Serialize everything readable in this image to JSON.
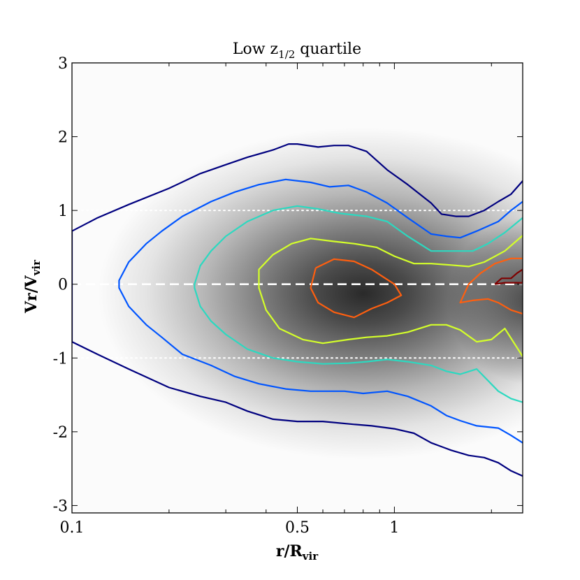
{
  "chart_data": {
    "type": "contour",
    "title": "Low z",
    "title_sub": "1/2",
    "title_suffix": " quartile",
    "xlabel": "r/R",
    "xlabel_sub": "vir",
    "ylabel": "Vr/V",
    "ylabel_sub": "vir",
    "x_scale": "log",
    "xlim": [
      0.1,
      2.5
    ],
    "ylim": [
      -3.1,
      3
    ],
    "x_ticks": [
      {
        "value": 0.1,
        "label": "0.1"
      },
      {
        "value": 0.5,
        "label": "0.5"
      },
      {
        "value": 1,
        "label": "1"
      }
    ],
    "x_minor_ticks": [
      0.2,
      0.3,
      0.4,
      0.6,
      0.7,
      0.8,
      0.9,
      2
    ],
    "y_ticks": [
      {
        "value": 3,
        "label": "3"
      },
      {
        "value": 2,
        "label": "2"
      },
      {
        "value": 1,
        "label": "1"
      },
      {
        "value": 0,
        "label": "0"
      },
      {
        "value": -1,
        "label": "-1"
      },
      {
        "value": -2,
        "label": "-2"
      },
      {
        "value": -3,
        "label": "-3"
      }
    ],
    "reference_lines": [
      {
        "y": 0,
        "style": "dashed",
        "color": "#ffffff"
      },
      {
        "y": 1,
        "style": "dotted",
        "color": "#ffffff"
      },
      {
        "y": -1,
        "style": "dotted",
        "color": "#ffffff"
      }
    ],
    "density_background": {
      "colormap": "greys",
      "peak": {
        "x": 0.8,
        "y": -0.1
      }
    },
    "contours": [
      {
        "level": 1,
        "color": "#00007f",
        "upper": [
          [
            0.1,
            0.72
          ],
          [
            0.12,
            0.9
          ],
          [
            0.15,
            1.08
          ],
          [
            0.2,
            1.3
          ],
          [
            0.25,
            1.5
          ],
          [
            0.3,
            1.62
          ],
          [
            0.35,
            1.72
          ],
          [
            0.42,
            1.82
          ],
          [
            0.47,
            1.9
          ],
          [
            0.5,
            1.9
          ],
          [
            0.58,
            1.86
          ],
          [
            0.65,
            1.88
          ],
          [
            0.72,
            1.88
          ],
          [
            0.82,
            1.8
          ],
          [
            0.95,
            1.55
          ],
          [
            1.1,
            1.35
          ],
          [
            1.3,
            1.1
          ],
          [
            1.4,
            0.95
          ],
          [
            1.55,
            0.92
          ],
          [
            1.7,
            0.92
          ],
          [
            1.9,
            1.0
          ],
          [
            2.1,
            1.12
          ],
          [
            2.3,
            1.22
          ],
          [
            2.5,
            1.4
          ]
        ],
        "lower": [
          [
            0.1,
            -0.78
          ],
          [
            0.12,
            -0.95
          ],
          [
            0.15,
            -1.15
          ],
          [
            0.2,
            -1.4
          ],
          [
            0.25,
            -1.52
          ],
          [
            0.3,
            -1.6
          ],
          [
            0.35,
            -1.72
          ],
          [
            0.42,
            -1.83
          ],
          [
            0.5,
            -1.86
          ],
          [
            0.6,
            -1.86
          ],
          [
            0.75,
            -1.9
          ],
          [
            0.85,
            -1.92
          ],
          [
            1.0,
            -1.96
          ],
          [
            1.15,
            -2.02
          ],
          [
            1.3,
            -2.15
          ],
          [
            1.5,
            -2.25
          ],
          [
            1.7,
            -2.32
          ],
          [
            1.9,
            -2.35
          ],
          [
            2.1,
            -2.42
          ],
          [
            2.3,
            -2.53
          ],
          [
            2.5,
            -2.6
          ]
        ]
      },
      {
        "level": 2,
        "color": "#0055ff",
        "upper": [
          [
            0.14,
            0.05
          ],
          [
            0.15,
            0.3
          ],
          [
            0.17,
            0.55
          ],
          [
            0.19,
            0.72
          ],
          [
            0.22,
            0.92
          ],
          [
            0.27,
            1.12
          ],
          [
            0.32,
            1.25
          ],
          [
            0.38,
            1.35
          ],
          [
            0.46,
            1.42
          ],
          [
            0.55,
            1.38
          ],
          [
            0.63,
            1.32
          ],
          [
            0.72,
            1.34
          ],
          [
            0.82,
            1.25
          ],
          [
            0.95,
            1.1
          ],
          [
            1.1,
            0.9
          ],
          [
            1.3,
            0.68
          ],
          [
            1.45,
            0.65
          ],
          [
            1.6,
            0.63
          ],
          [
            1.8,
            0.72
          ],
          [
            2.1,
            0.85
          ],
          [
            2.3,
            1.0
          ],
          [
            2.5,
            1.12
          ]
        ],
        "lower": [
          [
            0.14,
            -0.05
          ],
          [
            0.15,
            -0.3
          ],
          [
            0.17,
            -0.55
          ],
          [
            0.19,
            -0.72
          ],
          [
            0.22,
            -0.95
          ],
          [
            0.27,
            -1.1
          ],
          [
            0.32,
            -1.25
          ],
          [
            0.38,
            -1.35
          ],
          [
            0.46,
            -1.42
          ],
          [
            0.55,
            -1.45
          ],
          [
            0.7,
            -1.45
          ],
          [
            0.8,
            -1.48
          ],
          [
            0.95,
            -1.45
          ],
          [
            1.1,
            -1.52
          ],
          [
            1.3,
            -1.65
          ],
          [
            1.45,
            -1.78
          ],
          [
            1.6,
            -1.85
          ],
          [
            1.8,
            -1.92
          ],
          [
            2.1,
            -1.95
          ],
          [
            2.3,
            -2.05
          ],
          [
            2.5,
            -2.15
          ]
        ]
      },
      {
        "level": 3,
        "color": "#2cd9c0",
        "upper": [
          [
            0.24,
            0.0
          ],
          [
            0.25,
            0.25
          ],
          [
            0.27,
            0.45
          ],
          [
            0.3,
            0.65
          ],
          [
            0.35,
            0.85
          ],
          [
            0.42,
            1.0
          ],
          [
            0.5,
            1.06
          ],
          [
            0.58,
            1.02
          ],
          [
            0.68,
            0.96
          ],
          [
            0.82,
            0.92
          ],
          [
            0.95,
            0.85
          ],
          [
            1.1,
            0.65
          ],
          [
            1.3,
            0.45
          ],
          [
            1.55,
            0.45
          ],
          [
            1.75,
            0.45
          ],
          [
            1.95,
            0.55
          ],
          [
            2.2,
            0.7
          ],
          [
            2.5,
            0.9
          ]
        ],
        "lower": [
          [
            0.24,
            -0.05
          ],
          [
            0.25,
            -0.3
          ],
          [
            0.27,
            -0.5
          ],
          [
            0.3,
            -0.68
          ],
          [
            0.35,
            -0.88
          ],
          [
            0.42,
            -1.0
          ],
          [
            0.5,
            -1.05
          ],
          [
            0.6,
            -1.08
          ],
          [
            0.72,
            -1.07
          ],
          [
            0.82,
            -1.05
          ],
          [
            0.95,
            -1.02
          ],
          [
            1.1,
            -1.05
          ],
          [
            1.3,
            -1.1
          ],
          [
            1.45,
            -1.18
          ],
          [
            1.6,
            -1.22
          ],
          [
            1.8,
            -1.15
          ],
          [
            2.1,
            -1.45
          ],
          [
            2.3,
            -1.55
          ],
          [
            2.5,
            -1.6
          ]
        ]
      },
      {
        "level": 4,
        "color": "#d4ff2a",
        "upper": [
          [
            0.38,
            0.0
          ],
          [
            0.38,
            0.2
          ],
          [
            0.42,
            0.4
          ],
          [
            0.48,
            0.55
          ],
          [
            0.55,
            0.62
          ],
          [
            0.65,
            0.58
          ],
          [
            0.75,
            0.55
          ],
          [
            0.88,
            0.5
          ],
          [
            1.0,
            0.38
          ],
          [
            1.15,
            0.28
          ],
          [
            1.3,
            0.28
          ],
          [
            1.5,
            0.26
          ],
          [
            1.7,
            0.24
          ],
          [
            1.9,
            0.3
          ],
          [
            2.2,
            0.45
          ],
          [
            2.5,
            0.66
          ]
        ],
        "lower": [
          [
            0.38,
            -0.05
          ],
          [
            0.4,
            -0.35
          ],
          [
            0.44,
            -0.6
          ],
          [
            0.52,
            -0.75
          ],
          [
            0.6,
            -0.8
          ],
          [
            0.72,
            -0.75
          ],
          [
            0.82,
            -0.72
          ],
          [
            0.95,
            -0.7
          ],
          [
            1.1,
            -0.65
          ],
          [
            1.3,
            -0.55
          ],
          [
            1.45,
            -0.55
          ],
          [
            1.6,
            -0.62
          ],
          [
            1.8,
            -0.78
          ],
          [
            2.0,
            -0.75
          ],
          [
            2.2,
            -0.6
          ],
          [
            2.5,
            -0.98
          ]
        ]
      },
      {
        "level": 5,
        "color": "#ff5f0f",
        "closed": true,
        "points": [
          [
            0.57,
            0.22
          ],
          [
            0.65,
            0.34
          ],
          [
            0.75,
            0.31
          ],
          [
            0.85,
            0.2
          ],
          [
            1.0,
            0.0
          ],
          [
            1.05,
            -0.15
          ],
          [
            0.95,
            -0.25
          ],
          [
            0.85,
            -0.33
          ],
          [
            0.75,
            -0.45
          ],
          [
            0.65,
            -0.38
          ],
          [
            0.58,
            -0.25
          ],
          [
            0.55,
            -0.05
          ],
          [
            0.57,
            0.22
          ]
        ]
      },
      {
        "level": 5,
        "color": "#ff5f0f",
        "upper": [
          [
            1.6,
            -0.25
          ],
          [
            1.7,
            0.0
          ],
          [
            1.85,
            0.15
          ],
          [
            2.05,
            0.28
          ],
          [
            2.3,
            0.35
          ],
          [
            2.5,
            0.35
          ]
        ],
        "lower": [
          [
            1.6,
            -0.25
          ],
          [
            1.75,
            -0.22
          ],
          [
            1.95,
            -0.2
          ],
          [
            2.1,
            -0.25
          ],
          [
            2.3,
            -0.35
          ],
          [
            2.5,
            -0.4
          ]
        ]
      },
      {
        "level": 6,
        "color": "#7f0000",
        "closed": true,
        "points": [
          [
            2.05,
            0.0
          ],
          [
            2.15,
            0.08
          ],
          [
            2.3,
            0.08
          ],
          [
            2.4,
            0.15
          ],
          [
            2.5,
            0.2
          ],
          [
            2.5,
            0.02
          ],
          [
            2.35,
            0.02
          ],
          [
            2.2,
            0.02
          ],
          [
            2.05,
            0.0
          ]
        ]
      }
    ],
    "grid": false,
    "legend": "none"
  }
}
